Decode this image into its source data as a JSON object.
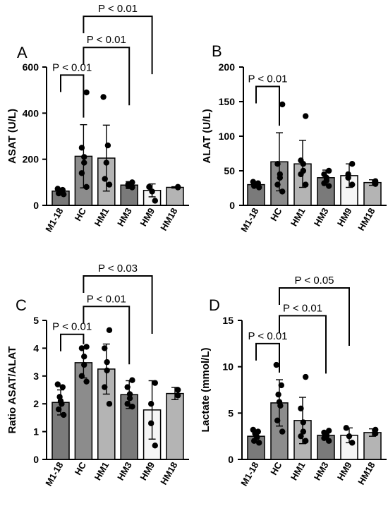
{
  "chart_data": [
    {
      "type": "bar",
      "panel_label": "A",
      "ylabel": "ASAT (U/L)",
      "ylim": [
        0,
        600
      ],
      "yticks": [
        0,
        200,
        400,
        600
      ],
      "categories": [
        "M1-18",
        "HC",
        "HM1",
        "HM3",
        "HM9",
        "HM18"
      ],
      "values": [
        62,
        213,
        205,
        88,
        65,
        78
      ],
      "error": [
        10,
        137,
        143,
        15,
        28,
        3
      ],
      "bar_colors": [
        "#7a7a7a",
        "#8c8c8c",
        "#b4b4b4",
        "#7a7a7a",
        "#f5f5f5",
        "#b4b4b4"
      ],
      "points": [
        [
          48,
          52,
          56,
          60,
          63,
          67,
          72
        ],
        [
          80,
          140,
          185,
          210,
          250,
          490
        ],
        [
          90,
          115,
          185,
          260,
          470
        ],
        [
          78,
          85,
          92,
          100
        ],
        [
          20,
          60,
          80
        ],
        [
          78,
          80
        ]
      ],
      "comparisons": [
        {
          "from": 0,
          "to": 1,
          "label": "P < 0.01",
          "y": 565
        },
        {
          "from": 1,
          "to": 3,
          "label": "P < 0.01",
          "y": 685
        },
        {
          "from": 1,
          "to": 4,
          "label": "P < 0.01",
          "y": 820
        }
      ]
    },
    {
      "type": "bar",
      "panel_label": "B",
      "ylabel": "ALAT (U/L)",
      "ylim": [
        0,
        200
      ],
      "yticks": [
        0,
        50,
        100,
        150,
        200
      ],
      "categories": [
        "M1-18",
        "HC",
        "HM1",
        "HM3",
        "HM9",
        "HM18"
      ],
      "values": [
        30,
        63,
        60,
        40,
        43,
        33
      ],
      "error": [
        4,
        42,
        34,
        11,
        17,
        4
      ],
      "bar_colors": [
        "#7a7a7a",
        "#8c8c8c",
        "#b4b4b4",
        "#7a7a7a",
        "#f5f5f5",
        "#b4b4b4"
      ],
      "points": [
        [
          26,
          28,
          29,
          30,
          31,
          32,
          34
        ],
        [
          20,
          30,
          40,
          45,
          60,
          146
        ],
        [
          30,
          45,
          50,
          60,
          65,
          129
        ],
        [
          28,
          32,
          36,
          40,
          45,
          50
        ],
        [
          30,
          40,
          45,
          60
        ],
        [
          31,
          35
        ]
      ],
      "comparisons": [
        {
          "from": 0,
          "to": 1,
          "label": "P < 0.01",
          "y": 172
        }
      ]
    },
    {
      "type": "bar",
      "panel_label": "C",
      "ylabel": "Ratio ASAT/ALAT",
      "ylim": [
        0,
        5
      ],
      "yticks": [
        0,
        1,
        2,
        3,
        4,
        5
      ],
      "categories": [
        "M1-18",
        "HC",
        "HM1",
        "HM3",
        "HM9",
        "HM18"
      ],
      "values": [
        2.05,
        3.48,
        3.25,
        2.33,
        1.78,
        2.37
      ],
      "error": [
        0.45,
        0.55,
        0.9,
        0.5,
        1.05,
        0.22
      ],
      "bar_colors": [
        "#7a7a7a",
        "#8c8c8c",
        "#b4b4b4",
        "#7a7a7a",
        "#f5f5f5",
        "#b4b4b4"
      ],
      "points": [
        [
          1.6,
          1.8,
          2.0,
          2.1,
          2.25,
          2.6,
          2.7
        ],
        [
          2.8,
          3.0,
          3.4,
          3.7,
          4.0,
          4.05
        ],
        [
          2.0,
          2.6,
          3.2,
          3.5,
          4.0,
          4.65
        ],
        [
          1.9,
          2.0,
          2.2,
          2.35,
          2.6,
          2.85
        ],
        [
          0.5,
          1.3,
          2.0,
          2.75
        ],
        [
          2.3,
          2.5
        ]
      ],
      "comparisons": [
        {
          "from": 0,
          "to": 1,
          "label": "P < 0.01",
          "y": 4.5
        },
        {
          "from": 1,
          "to": 3,
          "label": "P < 0.01",
          "y": 5.5
        },
        {
          "from": 1,
          "to": 4,
          "label": "P < 0.03",
          "y": 6.6
        }
      ]
    },
    {
      "type": "bar",
      "panel_label": "D",
      "ylabel": "Lactate (mmol/L)",
      "ylim": [
        0,
        15
      ],
      "yticks": [
        0,
        5,
        10,
        15
      ],
      "categories": [
        "M1-18",
        "HC",
        "HM1",
        "HM3",
        "HM9",
        "HM18"
      ],
      "values": [
        2.5,
        6.1,
        4.2,
        2.6,
        2.6,
        2.9
      ],
      "error": [
        0.6,
        2.5,
        2.5,
        0.5,
        0.8,
        0.4
      ],
      "bar_colors": [
        "#7a7a7a",
        "#8c8c8c",
        "#b4b4b4",
        "#7a7a7a",
        "#f5f5f5",
        "#b4b4b4"
      ],
      "points": [
        [
          1.8,
          2.0,
          2.4,
          2.6,
          2.8,
          3.0,
          3.2
        ],
        [
          3.0,
          4.2,
          5.8,
          6.2,
          7.0,
          8.0,
          10.2
        ],
        [
          2.0,
          2.5,
          3.0,
          4.0,
          5.5,
          8.9
        ],
        [
          2.0,
          2.3,
          2.5,
          2.7,
          2.9,
          3.1
        ],
        [
          1.8,
          2.5,
          3.4
        ],
        [
          2.8,
          3.2
        ]
      ],
      "comparisons": [
        {
          "from": 0,
          "to": 1,
          "label": "P < 0.01",
          "y": 12.5
        },
        {
          "from": 1,
          "to": 3,
          "label": "P < 0.01",
          "y": 15.5
        },
        {
          "from": 1,
          "to": 4,
          "label": "P < 0.05",
          "y": 18.5
        }
      ]
    }
  ]
}
